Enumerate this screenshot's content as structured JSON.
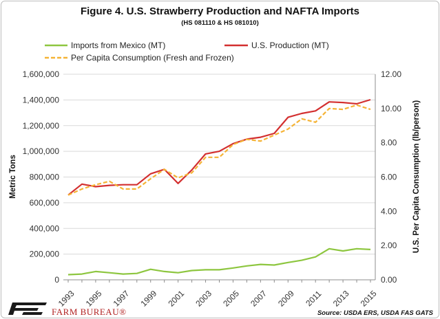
{
  "chart_data": {
    "type": "line",
    "title": "Figure 4. U.S. Strawberry  Production and NAFTA Imports",
    "subtitle": "(HS 081110 & HS 081010)",
    "ylabel": "Metric Tons",
    "y2label": "U.S. Per Capita Consumption (lb/person)",
    "ylim": [
      0,
      1600000
    ],
    "y2lim": [
      0,
      12
    ],
    "y_ticks": [
      "0",
      "200,000",
      "400,000",
      "600,000",
      "800,000",
      "1,000,000",
      "1,200,000",
      "1,400,000",
      "1,600,000"
    ],
    "y2_ticks": [
      "0.00",
      "2.00",
      "4.00",
      "6.00",
      "8.00",
      "10.00",
      "12.00"
    ],
    "x_ticks": [
      "1993",
      "1995",
      "1997",
      "1999",
      "2001",
      "2003",
      "2005",
      "2007",
      "2009",
      "2011",
      "2013",
      "2015"
    ],
    "x": [
      1993,
      1994,
      1995,
      1996,
      1997,
      1998,
      1999,
      2000,
      2001,
      2002,
      2003,
      2004,
      2005,
      2006,
      2007,
      2008,
      2009,
      2010,
      2011,
      2012,
      2013,
      2014,
      2015
    ],
    "grid": true,
    "legend_placement": "top",
    "series": [
      {
        "name": "Imports from Mexico (MT)",
        "axis": "left",
        "color": "#8dc63f",
        "style": "solid",
        "values": [
          40000,
          45000,
          65000,
          55000,
          45000,
          50000,
          82000,
          65000,
          55000,
          72000,
          78000,
          78000,
          92000,
          108000,
          120000,
          115000,
          135000,
          152000,
          178000,
          242000,
          225000,
          242000,
          236000
        ]
      },
      {
        "name": "U.S. Production (MT)",
        "axis": "left",
        "color": "#d32f2f",
        "style": "solid",
        "values": [
          660000,
          745000,
          725000,
          735000,
          740000,
          740000,
          825000,
          860000,
          750000,
          855000,
          980000,
          1000000,
          1060000,
          1095000,
          1110000,
          1140000,
          1265000,
          1295000,
          1315000,
          1385000,
          1380000,
          1370000,
          1402000
        ]
      },
      {
        "name": "Per Capita Consumption (Fresh and Frozen)",
        "axis": "right",
        "color": "#f5b335",
        "style": "dashed",
        "values": [
          4.95,
          5.3,
          5.55,
          5.75,
          5.3,
          5.3,
          5.9,
          6.45,
          5.95,
          6.25,
          7.15,
          7.15,
          7.9,
          8.2,
          8.1,
          8.45,
          8.8,
          9.4,
          9.2,
          10.0,
          9.95,
          10.2,
          9.95
        ]
      }
    ],
    "source": "Source:  USDA ERS, USDA FAS GATS"
  },
  "brand": {
    "name": "FARM BUREAU®",
    "logo_icon": "farm-bureau-logo-icon",
    "logo_color": "#1a1a1a"
  }
}
